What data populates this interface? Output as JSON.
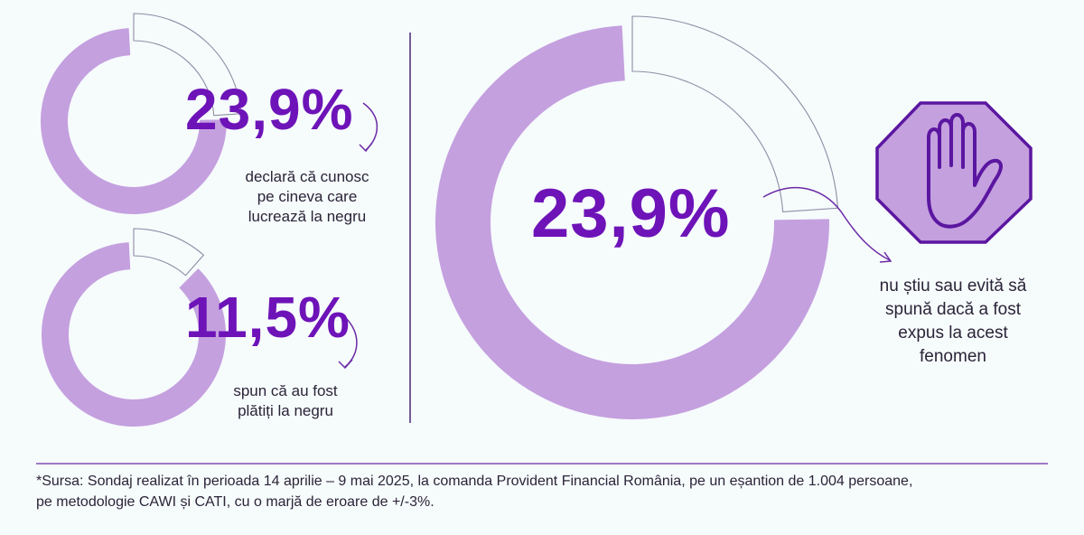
{
  "theme": {
    "ring_fill": "#c4a0df",
    "accent": "#6d13b8",
    "arrow": "#6a2aa6",
    "outline": "#8f8da4",
    "stop_sign_fill": "#c4a0df",
    "stop_sign_border": "#5b16a0"
  },
  "chart_data": [
    {
      "type": "pie",
      "style": "donut",
      "values": [
        23.9
      ],
      "value_label": "23,9%",
      "description_lines": [
        "declară că cunosc",
        "pe cineva care",
        "lucrează la negru"
      ]
    },
    {
      "type": "pie",
      "style": "donut",
      "values": [
        11.5
      ],
      "value_label": "11,5%",
      "description_lines": [
        "spun că au fost",
        "plătiți la negru"
      ]
    },
    {
      "type": "pie",
      "style": "donut",
      "values": [
        23.9
      ],
      "value_label": "23,9%",
      "description_lines": [
        "nu știu sau evită să",
        "spună dacă a fost",
        "expus la acest",
        "fenomen"
      ],
      "icon": "stop-hand-icon"
    }
  ],
  "source": {
    "lines": [
      "*Sursa: Sondaj realizat în perioada 14 aprilie – 9 mai 2025, la comanda Provident Financial România, pe un eșantion de 1.004 persoane,",
      "pe metodologie CAWI și CATI, cu o marjă de eroare de +/-3%."
    ]
  }
}
